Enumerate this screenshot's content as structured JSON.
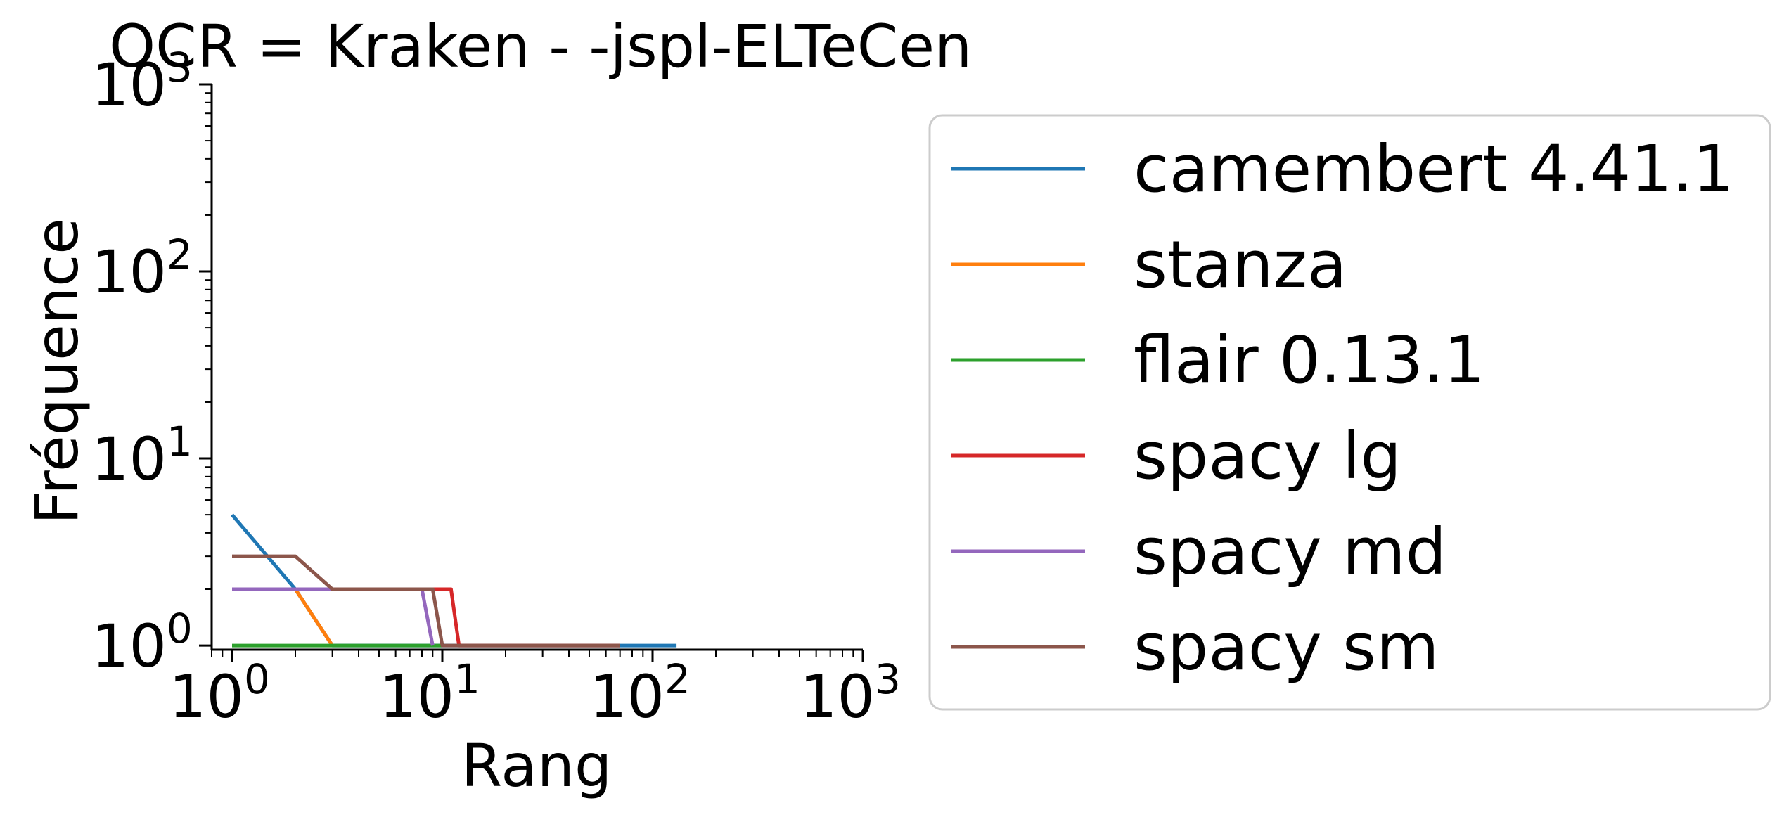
{
  "chart_data": {
    "type": "line",
    "title": "OCR = Kraken - -jspl-ELTeCen",
    "xlabel": "Rang",
    "ylabel": "Fréquence",
    "xscale": "log",
    "yscale": "log",
    "xlim": [
      0.8,
      1000
    ],
    "ylim": [
      0.95,
      1000
    ],
    "x_tick_labels": [
      {
        "value": 1,
        "base": "10",
        "exp": "0"
      },
      {
        "value": 10,
        "base": "10",
        "exp": "1"
      },
      {
        "value": 100,
        "base": "10",
        "exp": "2"
      },
      {
        "value": 1000,
        "base": "10",
        "exp": "3"
      }
    ],
    "y_tick_labels": [
      {
        "value": 1,
        "base": "10",
        "exp": "0"
      },
      {
        "value": 10,
        "base": "10",
        "exp": "1"
      },
      {
        "value": 100,
        "base": "10",
        "exp": "2"
      },
      {
        "value": 1000,
        "base": "10",
        "exp": "3"
      }
    ],
    "grid": false,
    "legend_position": "right",
    "series": [
      {
        "name": "camembert 4.41.1",
        "color": "#1f77b4",
        "x": [
          1,
          2,
          3,
          130
        ],
        "y": [
          5,
          2,
          1,
          1
        ]
      },
      {
        "name": "stanza",
        "color": "#ff7f0e",
        "x": [
          1,
          2,
          3
        ],
        "y": [
          2,
          2,
          1
        ]
      },
      {
        "name": "flair 0.13.1",
        "color": "#2ca02c",
        "x": [
          1,
          10
        ],
        "y": [
          1,
          1
        ]
      },
      {
        "name": "spacy lg",
        "color": "#d62728",
        "x": [
          1,
          11,
          12,
          70
        ],
        "y": [
          2,
          2,
          1,
          1
        ]
      },
      {
        "name": "spacy md",
        "color": "#9467bd",
        "x": [
          1,
          8,
          9
        ],
        "y": [
          2,
          2,
          1
        ]
      },
      {
        "name": "spacy sm",
        "color": "#8c564b",
        "x": [
          1,
          2,
          3,
          9,
          10,
          70
        ],
        "y": [
          3,
          3,
          2,
          2,
          1,
          1
        ]
      }
    ]
  }
}
